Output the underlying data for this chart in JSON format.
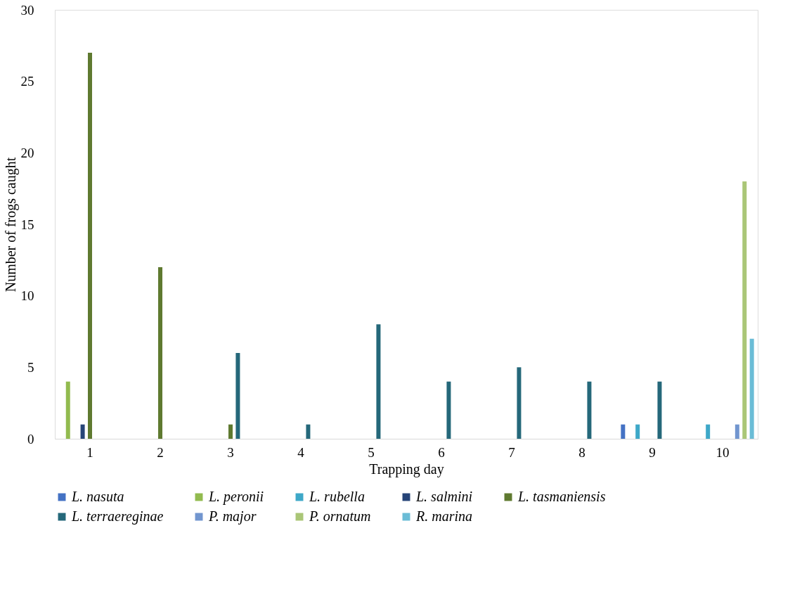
{
  "chart_data": {
    "type": "bar",
    "xlabel": "Trapping day",
    "ylabel": "Number of frogs caught",
    "categories": [
      "1",
      "2",
      "3",
      "4",
      "5",
      "6",
      "7",
      "8",
      "9",
      "10"
    ],
    "ylim": [
      0,
      30
    ],
    "yticks": [
      0,
      5,
      10,
      15,
      20,
      25,
      30
    ],
    "grid": false,
    "legend": "bottom",
    "series": [
      {
        "name": "L. nasuta",
        "color": "#4472c4",
        "values": [
          null,
          null,
          null,
          null,
          null,
          null,
          null,
          null,
          1,
          null
        ]
      },
      {
        "name": "L. peronii",
        "color": "#92bb4f",
        "values": [
          4,
          null,
          null,
          null,
          null,
          null,
          null,
          null,
          null,
          null
        ]
      },
      {
        "name": "L. rubella",
        "color": "#3ea8c8",
        "values": [
          null,
          null,
          null,
          null,
          null,
          null,
          null,
          null,
          1,
          1
        ]
      },
      {
        "name": "L. salmini",
        "color": "#264478",
        "values": [
          1,
          null,
          null,
          null,
          null,
          null,
          null,
          null,
          null,
          null
        ]
      },
      {
        "name": "L. tasmaniensis",
        "color": "#5f7a30",
        "values": [
          27,
          12,
          1,
          null,
          null,
          null,
          null,
          null,
          null,
          null
        ]
      },
      {
        "name": "L. terraereginae",
        "color": "#25687a",
        "values": [
          null,
          null,
          6,
          1,
          8,
          4,
          5,
          4,
          4,
          null
        ]
      },
      {
        "name": "P. major",
        "color": "#7296cf",
        "values": [
          null,
          null,
          null,
          null,
          null,
          null,
          null,
          null,
          null,
          1
        ]
      },
      {
        "name": "P. ornatum",
        "color": "#aac677",
        "values": [
          null,
          null,
          null,
          null,
          null,
          null,
          null,
          null,
          null,
          18
        ]
      },
      {
        "name": "R. marina",
        "color": "#6bbcd6",
        "values": [
          null,
          null,
          null,
          null,
          null,
          null,
          null,
          null,
          null,
          7
        ]
      }
    ]
  }
}
